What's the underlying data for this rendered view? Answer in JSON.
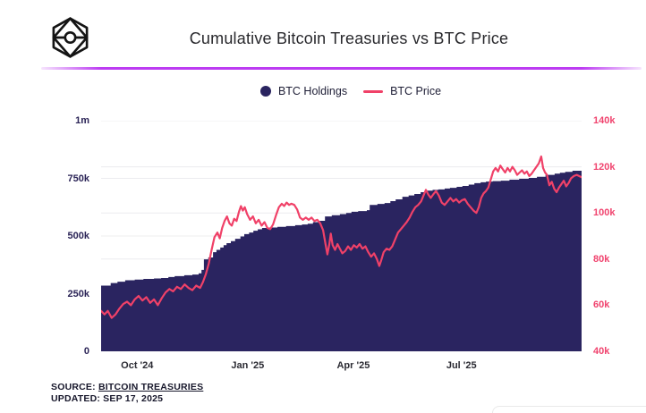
{
  "header": {
    "title": "Cumulative Bitcoin Treasuries vs BTC Price"
  },
  "footer": {
    "source_label": "SOURCE:",
    "source_link": "BITCOIN TREASURIES",
    "updated": "UPDATED: SEP 17, 2025"
  },
  "chart_data": {
    "type": "area",
    "title": "Cumulative Bitcoin Treasuries vs BTC Price",
    "grid": true,
    "grid_color": "#ececef",
    "divider_color": "#bc3bf2",
    "logo_color": "#141414",
    "x_tick_color": "#2b2b33",
    "legend": [
      {
        "label": "BTC Holdings",
        "marker": "dot",
        "color": "#2a2460"
      },
      {
        "label": "BTC Price",
        "marker": "line",
        "color": "#f04168"
      }
    ],
    "x_ticks": [
      {
        "label": "Oct '24",
        "t": 0.075
      },
      {
        "label": "Jan '25",
        "t": 0.305
      },
      {
        "label": "Apr '25",
        "t": 0.525
      },
      {
        "label": "Jul '25",
        "t": 0.75
      }
    ],
    "left_axis": {
      "color": "#2a2356",
      "min": 0,
      "max": 1000000,
      "ticks": [
        {
          "label": "0",
          "value": 0
        },
        {
          "label": "250k",
          "value": 250000
        },
        {
          "label": "500k",
          "value": 500000
        },
        {
          "label": "750k",
          "value": 750000
        },
        {
          "label": "1m",
          "value": 1000000
        }
      ]
    },
    "right_axis": {
      "color": "#f0436e",
      "min": 40000,
      "max": 140000,
      "ticks": [
        {
          "label": "40k",
          "value": 40000
        },
        {
          "label": "60k",
          "value": 60000
        },
        {
          "label": "80k",
          "value": 80000
        },
        {
          "label": "100k",
          "value": 100000
        },
        {
          "label": "120k",
          "value": 120000
        },
        {
          "label": "140k",
          "value": 140000
        }
      ]
    },
    "series": [
      {
        "name": "BTC Holdings",
        "type": "step-area",
        "axis": "left",
        "color": "#2a2460",
        "points": [
          [
            0.0,
            285000
          ],
          [
            0.02,
            296000
          ],
          [
            0.034,
            302000
          ],
          [
            0.05,
            308000
          ],
          [
            0.07,
            311000
          ],
          [
            0.088,
            314000
          ],
          [
            0.11,
            316000
          ],
          [
            0.125,
            318000
          ],
          [
            0.14,
            322000
          ],
          [
            0.153,
            326000
          ],
          [
            0.173,
            330000
          ],
          [
            0.19,
            333000
          ],
          [
            0.203,
            338000
          ],
          [
            0.209,
            353000
          ],
          [
            0.214,
            399000
          ],
          [
            0.223,
            407000
          ],
          [
            0.233,
            430000
          ],
          [
            0.24,
            440000
          ],
          [
            0.248,
            450000
          ],
          [
            0.255,
            460000
          ],
          [
            0.261,
            469000
          ],
          [
            0.27,
            478000
          ],
          [
            0.279,
            488000
          ],
          [
            0.29,
            498000
          ],
          [
            0.298,
            508000
          ],
          [
            0.308,
            515000
          ],
          [
            0.317,
            523000
          ],
          [
            0.326,
            529000
          ],
          [
            0.335,
            535000
          ],
          [
            0.35,
            537000
          ],
          [
            0.367,
            540000
          ],
          [
            0.385,
            543000
          ],
          [
            0.404,
            547000
          ],
          [
            0.418,
            550000
          ],
          [
            0.43,
            553000
          ],
          [
            0.441,
            560000
          ],
          [
            0.455,
            566000
          ],
          [
            0.466,
            585000
          ],
          [
            0.48,
            590000
          ],
          [
            0.497,
            595000
          ],
          [
            0.51,
            600000
          ],
          [
            0.521,
            605000
          ],
          [
            0.535,
            608000
          ],
          [
            0.553,
            612000
          ],
          [
            0.559,
            635000
          ],
          [
            0.575,
            639000
          ],
          [
            0.59,
            643000
          ],
          [
            0.602,
            651000
          ],
          [
            0.613,
            659000
          ],
          [
            0.627,
            670000
          ],
          [
            0.64,
            676000
          ],
          [
            0.652,
            682000
          ],
          [
            0.665,
            690000
          ],
          [
            0.678,
            697000
          ],
          [
            0.69,
            700000
          ],
          [
            0.702,
            702000
          ],
          [
            0.715,
            706000
          ],
          [
            0.726,
            709000
          ],
          [
            0.74,
            713000
          ],
          [
            0.752,
            717000
          ],
          [
            0.765,
            723000
          ],
          [
            0.777,
            729000
          ],
          [
            0.79,
            733000
          ],
          [
            0.801,
            736000
          ],
          [
            0.815,
            738000
          ],
          [
            0.832,
            740000
          ],
          [
            0.85,
            744000
          ],
          [
            0.87,
            748000
          ],
          [
            0.89,
            752000
          ],
          [
            0.907,
            757000
          ],
          [
            0.925,
            765000
          ],
          [
            0.944,
            770000
          ],
          [
            0.955,
            774000
          ],
          [
            0.966,
            778000
          ],
          [
            0.981,
            783000
          ],
          [
            1.0,
            788000
          ]
        ]
      },
      {
        "name": "BTC Price",
        "type": "line",
        "axis": "right",
        "color": "#f04168",
        "points": [
          [
            0.0,
            57500
          ],
          [
            0.007,
            56000
          ],
          [
            0.014,
            57500
          ],
          [
            0.022,
            54500
          ],
          [
            0.03,
            56000
          ],
          [
            0.038,
            58500
          ],
          [
            0.046,
            60500
          ],
          [
            0.054,
            61500
          ],
          [
            0.062,
            60000
          ],
          [
            0.07,
            62500
          ],
          [
            0.078,
            64000
          ],
          [
            0.086,
            62000
          ],
          [
            0.094,
            63500
          ],
          [
            0.102,
            61000
          ],
          [
            0.11,
            62500
          ],
          [
            0.118,
            60000
          ],
          [
            0.126,
            63000
          ],
          [
            0.134,
            65500
          ],
          [
            0.142,
            67000
          ],
          [
            0.15,
            66000
          ],
          [
            0.158,
            68000
          ],
          [
            0.166,
            67000
          ],
          [
            0.174,
            69000
          ],
          [
            0.182,
            67500
          ],
          [
            0.19,
            66500
          ],
          [
            0.198,
            68500
          ],
          [
            0.206,
            67500
          ],
          [
            0.212,
            70000
          ],
          [
            0.218,
            73500
          ],
          [
            0.224,
            78000
          ],
          [
            0.23,
            84000
          ],
          [
            0.236,
            89500
          ],
          [
            0.242,
            91500
          ],
          [
            0.247,
            89000
          ],
          [
            0.252,
            93500
          ],
          [
            0.257,
            96500
          ],
          [
            0.262,
            98500
          ],
          [
            0.267,
            95500
          ],
          [
            0.272,
            94500
          ],
          [
            0.277,
            97500
          ],
          [
            0.282,
            96500
          ],
          [
            0.287,
            100500
          ],
          [
            0.291,
            103000
          ],
          [
            0.295,
            101000
          ],
          [
            0.299,
            102500
          ],
          [
            0.304,
            99500
          ],
          [
            0.31,
            97000
          ],
          [
            0.316,
            98500
          ],
          [
            0.322,
            95500
          ],
          [
            0.328,
            97000
          ],
          [
            0.334,
            94500
          ],
          [
            0.34,
            96000
          ],
          [
            0.346,
            93500
          ],
          [
            0.352,
            93000
          ],
          [
            0.358,
            95000
          ],
          [
            0.364,
            99000
          ],
          [
            0.37,
            102500
          ],
          [
            0.376,
            104000
          ],
          [
            0.381,
            103000
          ],
          [
            0.386,
            104500
          ],
          [
            0.391,
            103500
          ],
          [
            0.396,
            104000
          ],
          [
            0.402,
            103500
          ],
          [
            0.408,
            101500
          ],
          [
            0.414,
            98000
          ],
          [
            0.42,
            97000
          ],
          [
            0.426,
            98000
          ],
          [
            0.432,
            97000
          ],
          [
            0.438,
            98000
          ],
          [
            0.444,
            96500
          ],
          [
            0.45,
            97000
          ],
          [
            0.456,
            95500
          ],
          [
            0.462,
            92500
          ],
          [
            0.467,
            86500
          ],
          [
            0.471,
            82000
          ],
          [
            0.475,
            86500
          ],
          [
            0.478,
            91000
          ],
          [
            0.482,
            86000
          ],
          [
            0.487,
            84000
          ],
          [
            0.492,
            86500
          ],
          [
            0.497,
            84500
          ],
          [
            0.502,
            82500
          ],
          [
            0.508,
            83500
          ],
          [
            0.514,
            85500
          ],
          [
            0.52,
            84000
          ],
          [
            0.526,
            86000
          ],
          [
            0.532,
            85000
          ],
          [
            0.538,
            86500
          ],
          [
            0.544,
            84500
          ],
          [
            0.55,
            85500
          ],
          [
            0.556,
            83000
          ],
          [
            0.562,
            81000
          ],
          [
            0.568,
            82500
          ],
          [
            0.574,
            80000
          ],
          [
            0.579,
            77000
          ],
          [
            0.583,
            79500
          ],
          [
            0.588,
            83000
          ],
          [
            0.594,
            84500
          ],
          [
            0.6,
            84000
          ],
          [
            0.606,
            85500
          ],
          [
            0.612,
            88500
          ],
          [
            0.618,
            91500
          ],
          [
            0.624,
            93000
          ],
          [
            0.63,
            94500
          ],
          [
            0.636,
            96000
          ],
          [
            0.642,
            98000
          ],
          [
            0.648,
            100500
          ],
          [
            0.654,
            102500
          ],
          [
            0.66,
            103500
          ],
          [
            0.666,
            105000
          ],
          [
            0.671,
            107500
          ],
          [
            0.676,
            110000
          ],
          [
            0.681,
            108000
          ],
          [
            0.686,
            106500
          ],
          [
            0.691,
            108000
          ],
          [
            0.697,
            109500
          ],
          [
            0.703,
            107500
          ],
          [
            0.709,
            104500
          ],
          [
            0.715,
            103500
          ],
          [
            0.721,
            105000
          ],
          [
            0.727,
            106500
          ],
          [
            0.733,
            105000
          ],
          [
            0.739,
            106000
          ],
          [
            0.745,
            104500
          ],
          [
            0.751,
            105500
          ],
          [
            0.757,
            106000
          ],
          [
            0.763,
            104000
          ],
          [
            0.769,
            102500
          ],
          [
            0.775,
            101000
          ],
          [
            0.781,
            100000
          ],
          [
            0.786,
            102500
          ],
          [
            0.791,
            106500
          ],
          [
            0.796,
            108500
          ],
          [
            0.801,
            109500
          ],
          [
            0.806,
            111000
          ],
          [
            0.811,
            114500
          ],
          [
            0.816,
            118000
          ],
          [
            0.821,
            119500
          ],
          [
            0.826,
            118000
          ],
          [
            0.831,
            120500
          ],
          [
            0.836,
            119000
          ],
          [
            0.841,
            117500
          ],
          [
            0.846,
            119500
          ],
          [
            0.851,
            118000
          ],
          [
            0.856,
            120000
          ],
          [
            0.861,
            118500
          ],
          [
            0.866,
            116500
          ],
          [
            0.871,
            117500
          ],
          [
            0.876,
            118500
          ],
          [
            0.881,
            117000
          ],
          [
            0.886,
            118000
          ],
          [
            0.891,
            116000
          ],
          [
            0.896,
            117000
          ],
          [
            0.901,
            118500
          ],
          [
            0.906,
            120000
          ],
          [
            0.911,
            121500
          ],
          [
            0.916,
            124500
          ],
          [
            0.92,
            119500
          ],
          [
            0.924,
            117500
          ],
          [
            0.928,
            116500
          ],
          [
            0.933,
            112000
          ],
          [
            0.938,
            113500
          ],
          [
            0.943,
            110500
          ],
          [
            0.948,
            109000
          ],
          [
            0.953,
            111000
          ],
          [
            0.958,
            112500
          ],
          [
            0.963,
            114000
          ],
          [
            0.968,
            111500
          ],
          [
            0.973,
            113000
          ],
          [
            0.978,
            115000
          ],
          [
            0.984,
            116000
          ],
          [
            0.99,
            116500
          ],
          [
            1.0,
            115500
          ]
        ]
      }
    ]
  }
}
